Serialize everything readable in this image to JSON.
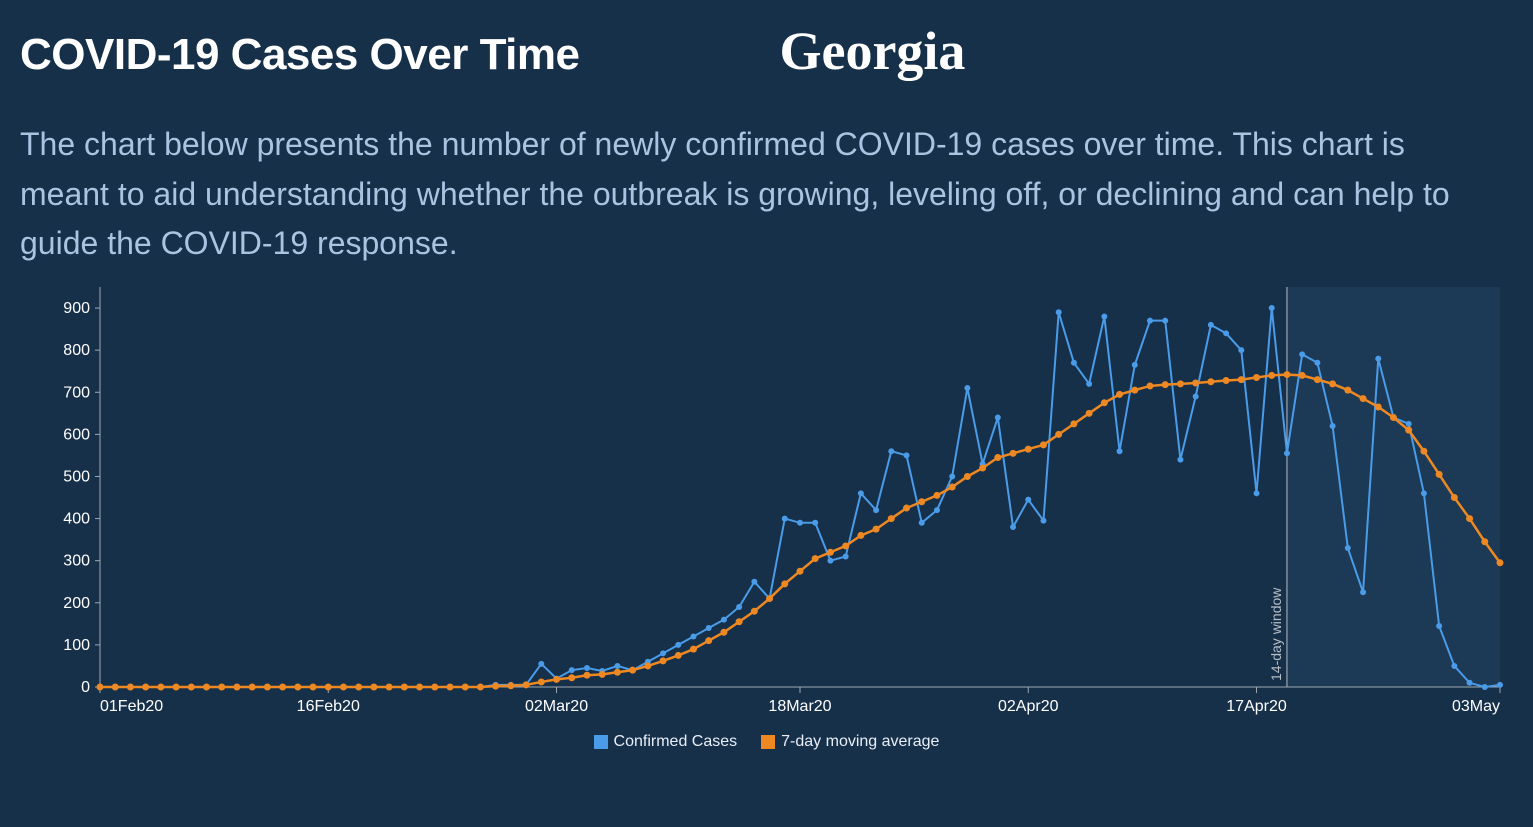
{
  "header": {
    "title": "COVID-19 Cases Over Time",
    "state": "Georgia"
  },
  "description": "The chart below presents the number of newly confirmed COVID-19 cases over time. This chart is meant to aid understanding whether the outbreak is growing, leveling off, or declining and can help to guide the COVID-19 response.",
  "chart": {
    "type": "line",
    "background_color": "#16304a",
    "axis_color": "#a0a8b0",
    "axis_label_color": "#ffffff",
    "axis_fontsize": 16,
    "shaded_region_color": "#1c3956",
    "divider_line_color": "#b7bec5",
    "window_label": "14-day window",
    "window_label_color": "#b7bec5",
    "ylim": [
      0,
      950
    ],
    "yticks": [
      0,
      100,
      200,
      300,
      400,
      500,
      600,
      700,
      800,
      900
    ],
    "xticks": [
      {
        "idx": 0,
        "label": "01Feb20"
      },
      {
        "idx": 15,
        "label": "16Feb20"
      },
      {
        "idx": 30,
        "label": "02Mar20"
      },
      {
        "idx": 46,
        "label": "18Mar20"
      },
      {
        "idx": 61,
        "label": "02Apr20"
      },
      {
        "idx": 76,
        "label": "17Apr20"
      },
      {
        "idx": 92,
        "label": "03May"
      }
    ],
    "x_count": 93,
    "window_start_idx": 78,
    "series": {
      "confirmed": {
        "label": "Confirmed Cases",
        "color": "#4a9be8",
        "line_width": 2,
        "marker_radius": 3,
        "values": [
          0,
          0,
          0,
          0,
          0,
          0,
          0,
          0,
          0,
          0,
          0,
          0,
          0,
          0,
          0,
          0,
          0,
          0,
          0,
          0,
          0,
          0,
          0,
          0,
          0,
          0,
          5,
          5,
          5,
          55,
          20,
          40,
          45,
          38,
          50,
          40,
          60,
          80,
          100,
          120,
          140,
          160,
          190,
          250,
          210,
          400,
          390,
          390,
          300,
          310,
          460,
          420,
          560,
          550,
          390,
          420,
          500,
          710,
          530,
          640,
          380,
          445,
          395,
          890,
          770,
          720,
          880,
          560,
          765,
          870,
          870,
          540,
          690,
          860,
          840,
          800,
          460,
          900,
          555,
          790,
          770,
          620,
          330,
          225,
          780,
          640,
          625,
          460,
          145,
          50,
          10,
          0,
          5
        ]
      },
      "moving_avg": {
        "label": "7-day moving average",
        "color": "#ee8822",
        "line_width": 2.5,
        "marker_radius": 3.5,
        "values": [
          0,
          0,
          0,
          0,
          0,
          0,
          0,
          0,
          0,
          0,
          0,
          0,
          0,
          0,
          0,
          0,
          0,
          0,
          0,
          0,
          0,
          0,
          0,
          0,
          0,
          0,
          2,
          3,
          5,
          12,
          18,
          22,
          28,
          30,
          35,
          40,
          50,
          62,
          75,
          90,
          110,
          130,
          155,
          180,
          210,
          245,
          275,
          305,
          320,
          335,
          360,
          375,
          400,
          425,
          440,
          455,
          475,
          500,
          520,
          545,
          555,
          565,
          575,
          600,
          625,
          650,
          675,
          695,
          705,
          715,
          718,
          720,
          722,
          725,
          728,
          730,
          735,
          740,
          742,
          740,
          730,
          720,
          705,
          685,
          665,
          640,
          610,
          560,
          505,
          450,
          400,
          345,
          295
        ]
      }
    },
    "legend": [
      {
        "color": "#4a9be8",
        "label": "Confirmed Cases"
      },
      {
        "color": "#ee8822",
        "label": "7-day moving average"
      }
    ]
  }
}
